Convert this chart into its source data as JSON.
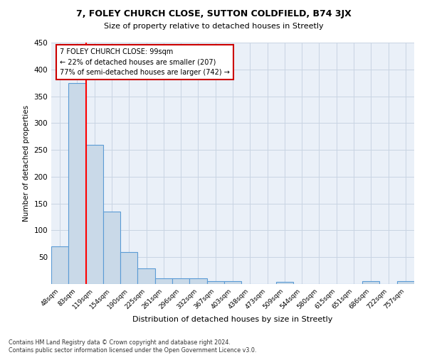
{
  "title1": "7, FOLEY CHURCH CLOSE, SUTTON COLDFIELD, B74 3JX",
  "title2": "Size of property relative to detached houses in Streetly",
  "xlabel": "Distribution of detached houses by size in Streetly",
  "ylabel": "Number of detached properties",
  "bin_labels": [
    "48sqm",
    "83sqm",
    "119sqm",
    "154sqm",
    "190sqm",
    "225sqm",
    "261sqm",
    "296sqm",
    "332sqm",
    "367sqm",
    "403sqm",
    "438sqm",
    "473sqm",
    "509sqm",
    "544sqm",
    "580sqm",
    "615sqm",
    "651sqm",
    "686sqm",
    "722sqm",
    "757sqm"
  ],
  "bar_heights": [
    70,
    375,
    260,
    135,
    60,
    29,
    10,
    10,
    10,
    5,
    5,
    0,
    0,
    4,
    0,
    0,
    0,
    0,
    5,
    0,
    5
  ],
  "bar_color": "#c9d9e8",
  "bar_edge_color": "#5b9bd5",
  "grid_color": "#c8d4e3",
  "annotation_line1": "7 FOLEY CHURCH CLOSE: 99sqm",
  "annotation_line2": "← 22% of detached houses are smaller (207)",
  "annotation_line3": "77% of semi-detached houses are larger (742) →",
  "annotation_box_color": "#ffffff",
  "annotation_box_edge": "#cc0000",
  "red_line_x": 1.5,
  "footer_text": "Contains HM Land Registry data © Crown copyright and database right 2024.\nContains public sector information licensed under the Open Government Licence v3.0.",
  "background_color": "#eaf0f8",
  "ylim": [
    0,
    450
  ],
  "yticks": [
    0,
    50,
    100,
    150,
    200,
    250,
    300,
    350,
    400,
    450
  ]
}
